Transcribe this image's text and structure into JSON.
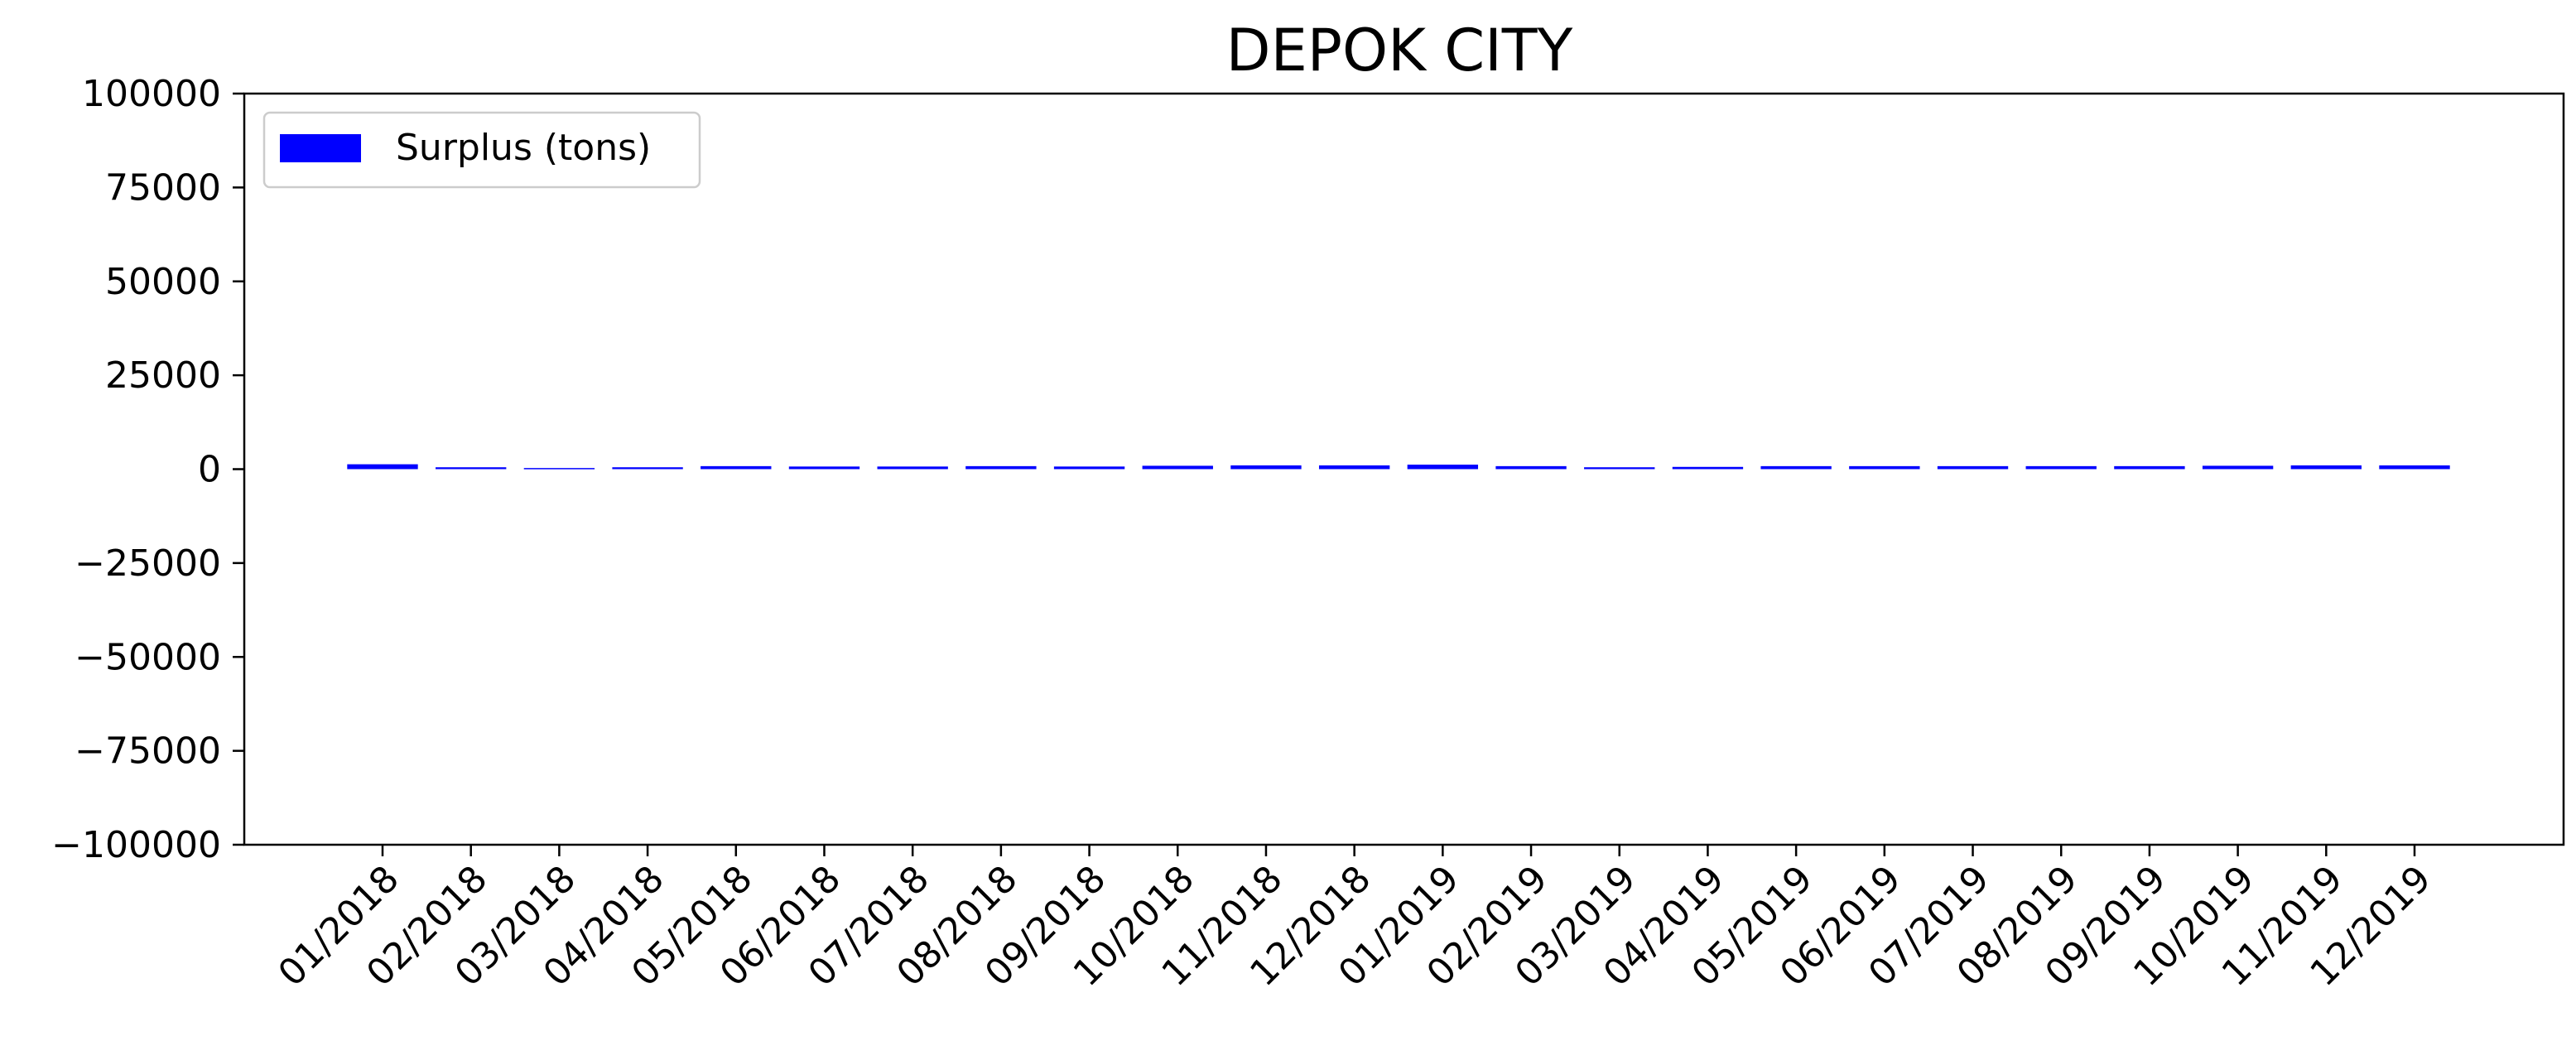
{
  "chart_data": {
    "type": "bar",
    "title": "DEPOK CITY",
    "xlabel": "",
    "ylabel": "",
    "ylim": [
      -100000,
      100000
    ],
    "yticks": [
      -100000,
      -75000,
      -50000,
      -25000,
      0,
      25000,
      50000,
      75000,
      100000
    ],
    "ytick_labels": [
      "−100000",
      "−75000",
      "−50000",
      "−25000",
      "0",
      "25000",
      "50000",
      "75000",
      "100000"
    ],
    "categories": [
      "01/2018",
      "02/2018",
      "03/2018",
      "04/2018",
      "05/2018",
      "06/2018",
      "07/2018",
      "08/2018",
      "09/2018",
      "10/2018",
      "11/2018",
      "12/2018",
      "01/2019",
      "02/2019",
      "03/2019",
      "04/2019",
      "05/2019",
      "06/2019",
      "07/2019",
      "08/2019",
      "09/2019",
      "10/2019",
      "11/2019",
      "12/2019"
    ],
    "series": [
      {
        "name": "Surplus (tons)",
        "color": "#0000ff",
        "values": [
          1300,
          500,
          300,
          500,
          800,
          700,
          700,
          800,
          700,
          900,
          1000,
          1000,
          1200,
          800,
          500,
          600,
          800,
          800,
          800,
          800,
          800,
          900,
          1000,
          1000
        ]
      }
    ],
    "legend_position": "top-left",
    "grid": false
  }
}
